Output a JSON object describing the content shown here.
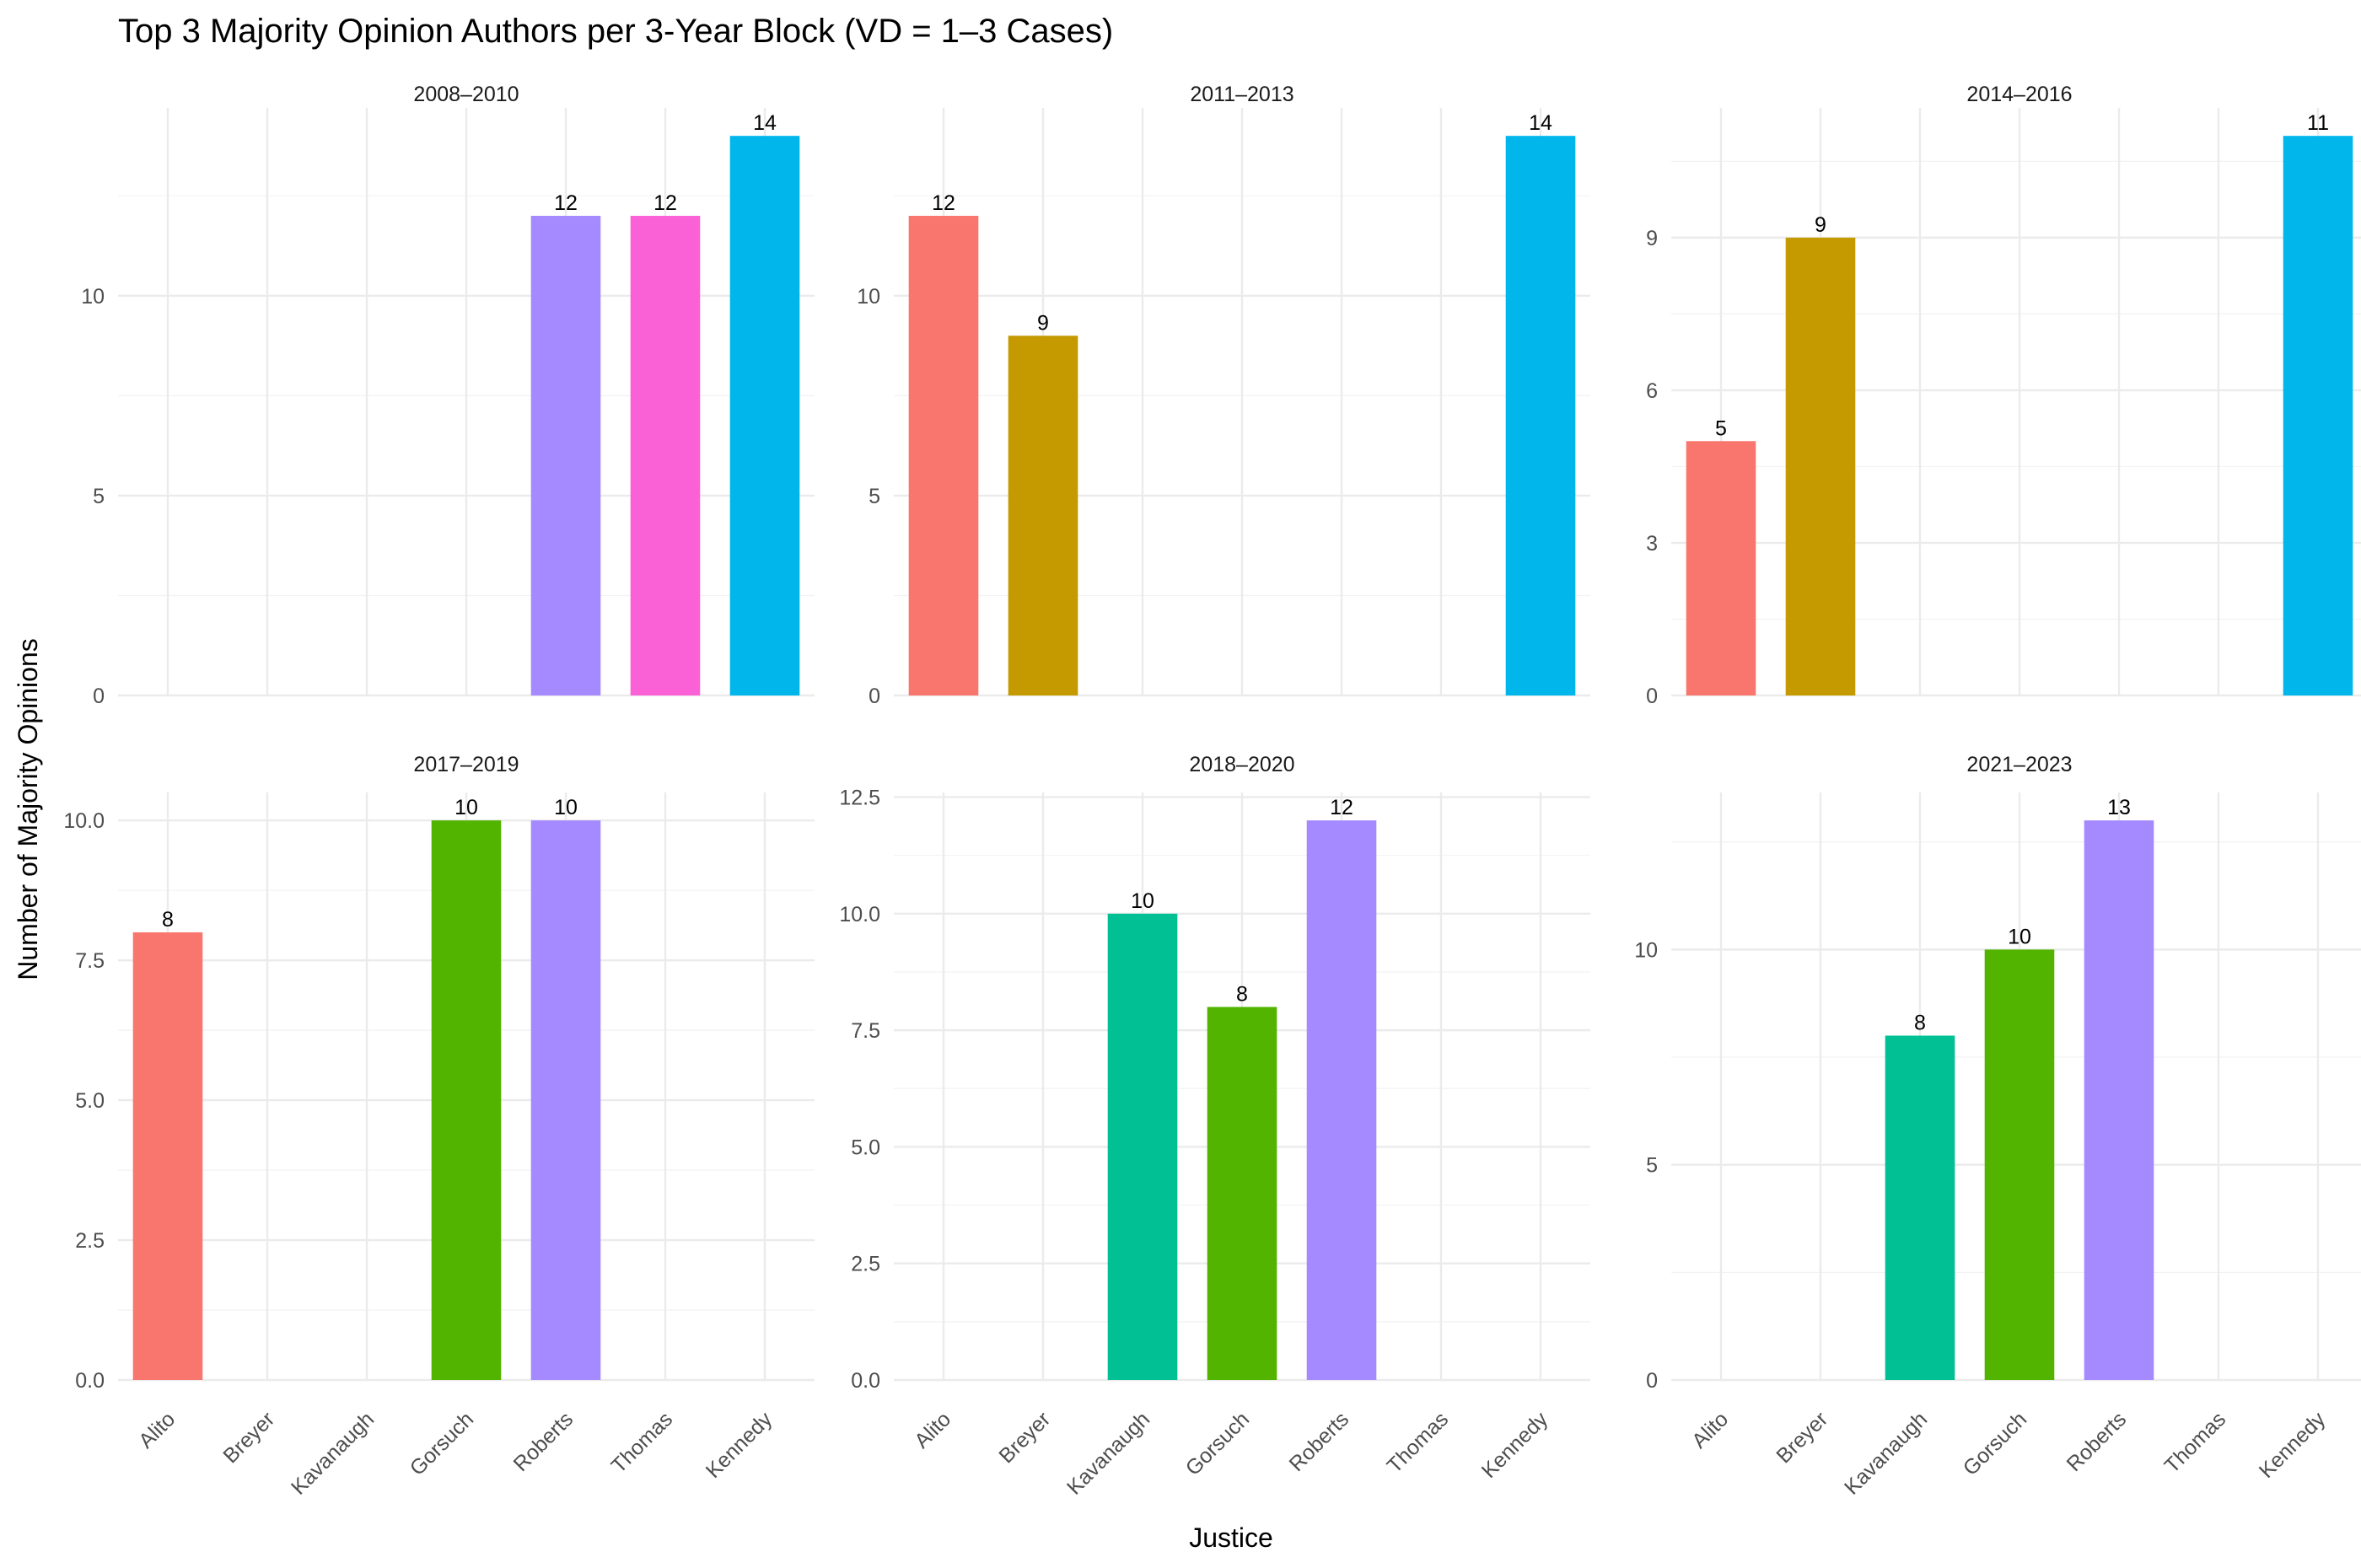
{
  "chart_data": {
    "type": "bar",
    "title": "Top 3 Majority Opinion Authors per 3-Year Block (VD = 1–3 Cases)",
    "xlabel": "Justice",
    "ylabel": "Number of Majority Opinions",
    "categories": [
      "Alito",
      "Breyer",
      "Kavanaugh",
      "Gorsuch",
      "Roberts",
      "Thomas",
      "Kennedy"
    ],
    "colors": {
      "Alito": "#F8766D",
      "Breyer": "#C49A00",
      "Kavanaugh": "#00C094",
      "Gorsuch": "#53B400",
      "Roberts": "#A58AFF",
      "Thomas": "#FB61D7",
      "Kennedy": "#00B6EB"
    },
    "panels": [
      {
        "label": "2008–2010",
        "ylim": [
          0,
          14.7
        ],
        "yticks": [
          0,
          5,
          10
        ],
        "ytick_labels": [
          "0",
          "5",
          "10"
        ],
        "values": {
          "Roberts": 12,
          "Thomas": 12,
          "Kennedy": 14
        }
      },
      {
        "label": "2011–2013",
        "ylim": [
          0,
          14.7
        ],
        "yticks": [
          0,
          5,
          10
        ],
        "ytick_labels": [
          "0",
          "5",
          "10"
        ],
        "values": {
          "Alito": 12,
          "Breyer": 9,
          "Kennedy": 14
        }
      },
      {
        "label": "2014–2016",
        "ylim": [
          0,
          11.55
        ],
        "yticks": [
          0,
          3,
          6,
          9
        ],
        "ytick_labels": [
          "0",
          "3",
          "6",
          "9"
        ],
        "values": {
          "Alito": 5,
          "Breyer": 9,
          "Kennedy": 11
        }
      },
      {
        "label": "2017–2019",
        "ylim": [
          0,
          10.5
        ],
        "yticks": [
          0,
          2.5,
          5,
          7.5,
          10
        ],
        "ytick_labels": [
          "0.0",
          "2.5",
          "5.0",
          "7.5",
          "10.0"
        ],
        "values": {
          "Alito": 8,
          "Gorsuch": 10,
          "Roberts": 10
        }
      },
      {
        "label": "2018–2020",
        "ylim": [
          0,
          12.6
        ],
        "yticks": [
          0,
          2.5,
          5,
          7.5,
          10,
          12.5
        ],
        "ytick_labels": [
          "0.0",
          "2.5",
          "5.0",
          "7.5",
          "10.0",
          "12.5"
        ],
        "values": {
          "Kavanaugh": 10,
          "Gorsuch": 8,
          "Roberts": 12
        }
      },
      {
        "label": "2021–2023",
        "ylim": [
          0,
          13.65
        ],
        "yticks": [
          0,
          5,
          10
        ],
        "ytick_labels": [
          "0",
          "5",
          "10"
        ],
        "values": {
          "Kavanaugh": 8,
          "Gorsuch": 10,
          "Roberts": 13
        }
      }
    ]
  }
}
